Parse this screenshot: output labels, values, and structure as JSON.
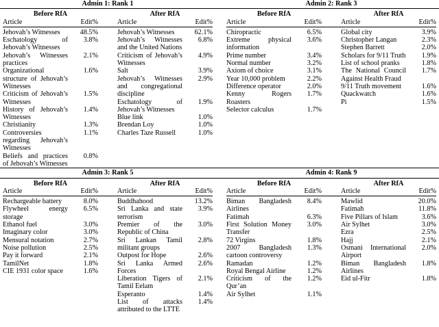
{
  "labels": {
    "before": "Before RfA",
    "after": "After RfA",
    "article": "Article",
    "edit": "Edit%"
  },
  "colors": {
    "text": "#000000",
    "background": "#ffffff",
    "rule": "#000000"
  },
  "panels": [
    {
      "title": "Admin 1: Rank 1",
      "before_rows": [
        {
          "article": "Jehovah’s Witnesses",
          "edit": "48.5%"
        },
        {
          "article": "Eschatology of Jehovah’s Witnesses",
          "edit": "3.8%"
        },
        {
          "article": "Jehovah’s Witnesses practices",
          "edit": "2.1%"
        },
        {
          "article": "Organizational structure of Jehovah’s Witnesses",
          "edit": "1.6%"
        },
        {
          "article": "Criticism of Jehovah’s Witnesses",
          "edit": "1.5%"
        },
        {
          "article": "History of Jehovah’s Witnesses",
          "edit": "1.4%"
        },
        {
          "article": "Christianity",
          "edit": "1.3%"
        },
        {
          "article": "Controversies regarding Jehovah’s Witnesses",
          "edit": "1.1%"
        },
        {
          "article": "Beliefs and practices of Jehovah’s Witnesses",
          "edit": "0.8%"
        }
      ],
      "after_rows": [
        {
          "article": "Jehovah’s Witnesses",
          "edit": "62.1%"
        },
        {
          "article": "Jehovah’s Witnesses and the United Nations",
          "edit": "6.8%"
        },
        {
          "article": "Criticism of Jehovah’s Witnesses",
          "edit": "4.9%"
        },
        {
          "article": "Salt",
          "edit": "3.9%"
        },
        {
          "article": "Jehovah’s Witnesses and congregational discipline",
          "edit": "2.9%"
        },
        {
          "article": "Eschatology of Jehovah’s Witnesses",
          "edit": "1.9%"
        },
        {
          "article": "Blue link",
          "edit": "1.0%"
        },
        {
          "article": "Brendan Loy",
          "edit": "1.0%"
        },
        {
          "article": "Charles Taze Russell",
          "edit": "1.0%"
        }
      ]
    },
    {
      "title": "Admin 2: Rank 3",
      "before_rows": [
        {
          "article": "Chiropractic",
          "edit": "6.5%"
        },
        {
          "article": "Extreme physical information",
          "edit": "3.6%"
        },
        {
          "article": "Prime number",
          "edit": "3.4%"
        },
        {
          "article": "Normal number",
          "edit": "3.2%"
        },
        {
          "article": "Axiom of choice",
          "edit": "3.1%"
        },
        {
          "article": "Year 10,000 problem",
          "edit": "2.2%"
        },
        {
          "article": "Difference operator",
          "edit": "2.0%"
        },
        {
          "article": "Kenny Rogers Roasters",
          "edit": "1.7%"
        },
        {
          "article": "Selector calculus",
          "edit": "1.7%"
        }
      ],
      "after_rows": [
        {
          "article": "Global city",
          "edit": "3.9%"
        },
        {
          "article": "Christopher Langan",
          "edit": "2.3%"
        },
        {
          "article": "Stephen Barrett",
          "edit": "2.0%"
        },
        {
          "article": "Scholars for 9/11 Truth",
          "edit": "1.9%"
        },
        {
          "article": "List of school pranks",
          "edit": "1.8%"
        },
        {
          "article": "The National Council Against Health Fraud",
          "edit": "1.7%"
        },
        {
          "article": "9/11 Truth movement",
          "edit": "1.6%"
        },
        {
          "article": "Quackwatch",
          "edit": "1.6%"
        },
        {
          "article": "Pi",
          "edit": "1.5%"
        }
      ]
    },
    {
      "title": "Admin 3: Rank 5",
      "before_rows": [
        {
          "article": "Rechargeable battery",
          "edit": "8.0%"
        },
        {
          "article": "Flywheel energy storage",
          "edit": "6.5%"
        },
        {
          "article": "Ethanol fuel",
          "edit": "3.0%"
        },
        {
          "article": "Imaginary color",
          "edit": "3.0%"
        },
        {
          "article": "Mensural notation",
          "edit": "2.7%"
        },
        {
          "article": "Noise pollution",
          "edit": "2.5%"
        },
        {
          "article": "Pay it forward",
          "edit": "2.1%"
        },
        {
          "article": "TamilNet",
          "edit": "1.8%"
        },
        {
          "article": "CIE 1931 color space",
          "edit": "1.6%"
        }
      ],
      "after_rows": [
        {
          "article": "Buddhahood",
          "edit": "13.2%"
        },
        {
          "article": "Sri Lanka and state terrorism",
          "edit": "3.9%"
        },
        {
          "article": "Premier of the Republic of China",
          "edit": "3.0%"
        },
        {
          "article": "Sri Lankan Tamil militant groups",
          "edit": "2.8%"
        },
        {
          "article": "Outpost for Hope",
          "edit": "2.6%"
        },
        {
          "article": "Sri Lanka Armed Forces",
          "edit": "2.6%"
        },
        {
          "article": "Liberation Tigers of Tamil Eelam",
          "edit": "2.1%"
        },
        {
          "article": "Esperanto",
          "edit": "1.4%"
        },
        {
          "article": "List of attacks attributed to the LTTE",
          "edit": "1.4%"
        }
      ]
    },
    {
      "title": "Admin 4: Rank 9",
      "before_rows": [
        {
          "article": "Biman Bangladesh Airlines",
          "edit": "8.4%"
        },
        {
          "article": "Fatimah",
          "edit": "6.3%"
        },
        {
          "article": "First Solution Money Transfer",
          "edit": "3.0%"
        },
        {
          "article": "72 Virgins",
          "edit": "1.8%"
        },
        {
          "article": "2007 Bangladesh cartoon controversy",
          "edit": "1.3%"
        },
        {
          "article": "Ramadan",
          "edit": "1.2%"
        },
        {
          "article": "Royal Bengal Airline",
          "edit": "1.2%"
        },
        {
          "article": "Criticism of the Qur’an",
          "edit": "1.2%"
        },
        {
          "article": "Air Sylhet",
          "edit": "1.1%"
        }
      ],
      "after_rows": [
        {
          "article": "Mawlid",
          "edit": "20.0%"
        },
        {
          "article": "Fatimah",
          "edit": "11.8%"
        },
        {
          "article": "Five Pillars of Islam",
          "edit": "3.6%"
        },
        {
          "article": "Air Sylhet",
          "edit": "3.0%"
        },
        {
          "article": "Ezra",
          "edit": "2.5%"
        },
        {
          "article": "Hajj",
          "edit": "2.1%"
        },
        {
          "article": "Osmani International Airport",
          "edit": "2.0%"
        },
        {
          "article": "Biman Bangladesh Airlines",
          "edit": "1.8%"
        },
        {
          "article": "Eid ul-Fitr",
          "edit": "1.8%"
        }
      ]
    }
  ]
}
